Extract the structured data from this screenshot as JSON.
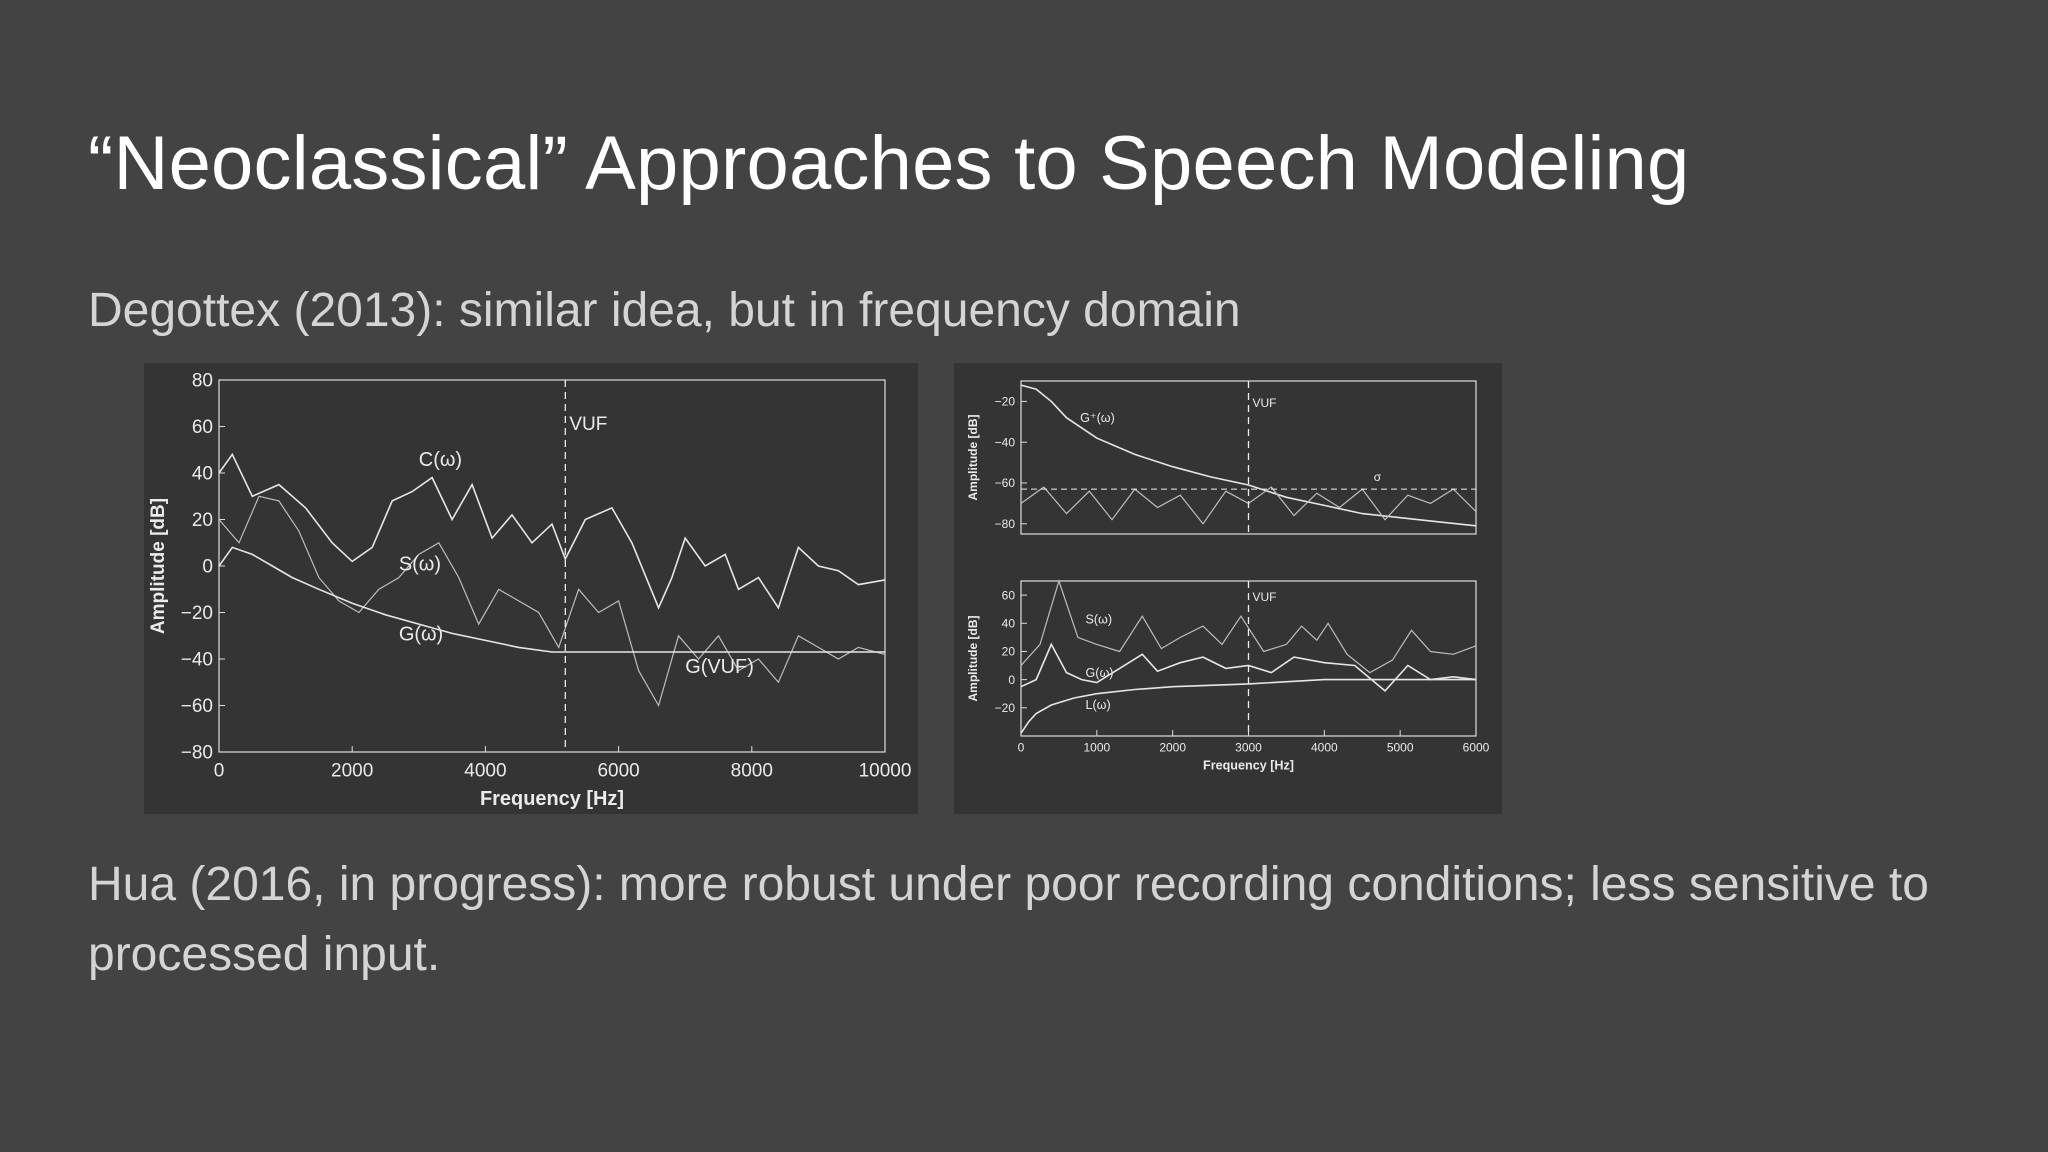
{
  "slide": {
    "title": "“Neoclassical” Approaches to Speech Modeling",
    "line1": "Degottex (2013): similar idea, but in frequency domain",
    "line2": "Hua (2016, in progress): more robust under poor recording conditions; less sensitive to processed input."
  },
  "colors": {
    "background": "#434343",
    "figure_bg": "#343434",
    "title": "#ffffff",
    "body": "#d4d4d4"
  },
  "chart_data": [
    {
      "type": "line",
      "xlabel": "Frequency [Hz]",
      "ylabel": "Amplitude [dB]",
      "xlim": [
        0,
        10000
      ],
      "ylim": [
        -80,
        80
      ],
      "xticks": [
        0,
        2000,
        4000,
        6000,
        8000,
        10000
      ],
      "yticks": [
        -80,
        -60,
        -40,
        -20,
        0,
        20,
        40,
        60,
        80
      ],
      "vline": {
        "x": 5200,
        "label": "VUF"
      },
      "annotations": [
        {
          "text": "C(ω)",
          "x": 3000,
          "y": 43
        },
        {
          "text": "S(ω)",
          "x": 2700,
          "y": -2
        },
        {
          "text": "G(ω)",
          "x": 2700,
          "y": -32
        },
        {
          "text": "G(VUF)",
          "x": 7000,
          "y": -46
        }
      ],
      "series": [
        {
          "id": "C",
          "x": [
            0,
            200,
            500,
            900,
            1300,
            1700,
            2000,
            2300,
            2600,
            2900,
            3200,
            3500,
            3800,
            4100,
            4400,
            4700,
            5000,
            5200,
            5500,
            5900,
            6200,
            6600,
            6800,
            7000,
            7300,
            7600,
            7800,
            8100,
            8400,
            8700,
            9000,
            9300,
            9600,
            10000
          ],
          "y": [
            40,
            48,
            30,
            35,
            25,
            10,
            2,
            8,
            28,
            32,
            38,
            20,
            35,
            12,
            22,
            10,
            18,
            3,
            20,
            25,
            10,
            -18,
            -5,
            12,
            0,
            5,
            -10,
            -5,
            -18,
            8,
            0,
            -2,
            -8,
            -6
          ]
        },
        {
          "id": "S",
          "x": [
            0,
            300,
            600,
            900,
            1200,
            1500,
            1800,
            2100,
            2400,
            2700,
            3000,
            3300,
            3600,
            3900,
            4200,
            4500,
            4800,
            5100,
            5400,
            5700,
            6000,
            6300,
            6600,
            6900,
            7200,
            7500,
            7800,
            8100,
            8400,
            8700,
            9000,
            9300,
            9600,
            10000
          ],
          "y": [
            20,
            10,
            30,
            28,
            15,
            -5,
            -15,
            -20,
            -10,
            -5,
            5,
            10,
            -5,
            -25,
            -10,
            -15,
            -20,
            -35,
            -10,
            -20,
            -15,
            -45,
            -60,
            -30,
            -40,
            -30,
            -45,
            -40,
            -50,
            -30,
            -35,
            -40,
            -35,
            -38
          ]
        },
        {
          "id": "G",
          "x": [
            0,
            200,
            500,
            800,
            1100,
            1500,
            2000,
            2500,
            3000,
            3500,
            4000,
            4500,
            5000,
            5200,
            6000,
            7000,
            8000,
            9000,
            10000
          ],
          "y": [
            0,
            8,
            5,
            0,
            -5,
            -10,
            -16,
            -21,
            -25,
            -29,
            -32,
            -35,
            -37,
            -37,
            -37,
            -37,
            -37,
            -37,
            -37
          ]
        }
      ]
    },
    {
      "type": "line",
      "panel": "top",
      "ylabel": "Amplitude [dB]",
      "xlim": [
        0,
        6000
      ],
      "ylim": [
        -85,
        -10
      ],
      "yticks": [
        -80,
        -60,
        -40,
        -20
      ],
      "vline": {
        "x": 3000,
        "label": "VUF"
      },
      "hline": {
        "y": -63,
        "label": "σ"
      },
      "annotations": [
        {
          "text": "G⁺(ω)",
          "x": 780,
          "y": -30
        }
      ],
      "series": [
        {
          "id": "G+",
          "x": [
            0,
            200,
            400,
            600,
            800,
            1000,
            1500,
            2000,
            2500,
            3000,
            3500,
            4000,
            4500,
            5000,
            5500,
            6000
          ],
          "y": [
            -12,
            -14,
            -20,
            -28,
            -33,
            -38,
            -46,
            -52,
            -57,
            -61,
            -67,
            -71,
            -75,
            -77,
            -79,
            -81
          ]
        },
        {
          "id": "noise",
          "x": [
            0,
            300,
            600,
            900,
            1200,
            1500,
            1800,
            2100,
            2400,
            2700,
            3000,
            3300,
            3600,
            3900,
            4200,
            4500,
            4800,
            5100,
            5400,
            5700,
            6000
          ],
          "y": [
            -70,
            -62,
            -75,
            -64,
            -78,
            -63,
            -72,
            -66,
            -80,
            -64,
            -70,
            -62,
            -76,
            -65,
            -72,
            -63,
            -78,
            -66,
            -70,
            -63,
            -74
          ]
        }
      ]
    },
    {
      "type": "line",
      "panel": "bottom",
      "xlabel": "Frequency [Hz]",
      "ylabel": "Amplitude [dB]",
      "xlim": [
        0,
        6000
      ],
      "ylim": [
        -40,
        70
      ],
      "xticks": [
        0,
        1000,
        2000,
        3000,
        4000,
        5000,
        6000
      ],
      "yticks": [
        -20,
        0,
        20,
        40,
        60
      ],
      "vline": {
        "x": 3000,
        "label": "VUF"
      },
      "annotations": [
        {
          "text": "S(ω)",
          "x": 850,
          "y": 40
        },
        {
          "text": "G(ω)",
          "x": 850,
          "y": 2
        },
        {
          "text": "L(ω)",
          "x": 850,
          "y": -21
        }
      ],
      "series": [
        {
          "id": "S",
          "x": [
            0,
            250,
            500,
            750,
            1000,
            1300,
            1600,
            1850,
            2100,
            2400,
            2650,
            2900,
            3200,
            3500,
            3700,
            3900,
            4050,
            4300,
            4600,
            4900,
            5150,
            5400,
            5700,
            6000
          ],
          "y": [
            10,
            25,
            70,
            30,
            25,
            20,
            45,
            22,
            30,
            38,
            25,
            45,
            20,
            25,
            38,
            28,
            40,
            18,
            5,
            14,
            35,
            20,
            18,
            24
          ]
        },
        {
          "id": "G",
          "x": [
            0,
            200,
            400,
            600,
            800,
            1000,
            1300,
            1600,
            1800,
            2100,
            2400,
            2700,
            3000,
            3300,
            3600,
            4000,
            4400,
            4800,
            5100,
            5400,
            5700,
            6000
          ],
          "y": [
            -5,
            0,
            25,
            5,
            0,
            -2,
            8,
            18,
            6,
            12,
            16,
            8,
            10,
            5,
            16,
            12,
            10,
            -8,
            10,
            0,
            2,
            0
          ]
        },
        {
          "id": "L",
          "x": [
            0,
            100,
            200,
            400,
            700,
            1000,
            1500,
            2000,
            3000,
            4000,
            5000,
            6000
          ],
          "y": [
            -38,
            -30,
            -24,
            -18,
            -13,
            -10,
            -7,
            -5,
            -3,
            0,
            0,
            0
          ]
        }
      ]
    }
  ]
}
